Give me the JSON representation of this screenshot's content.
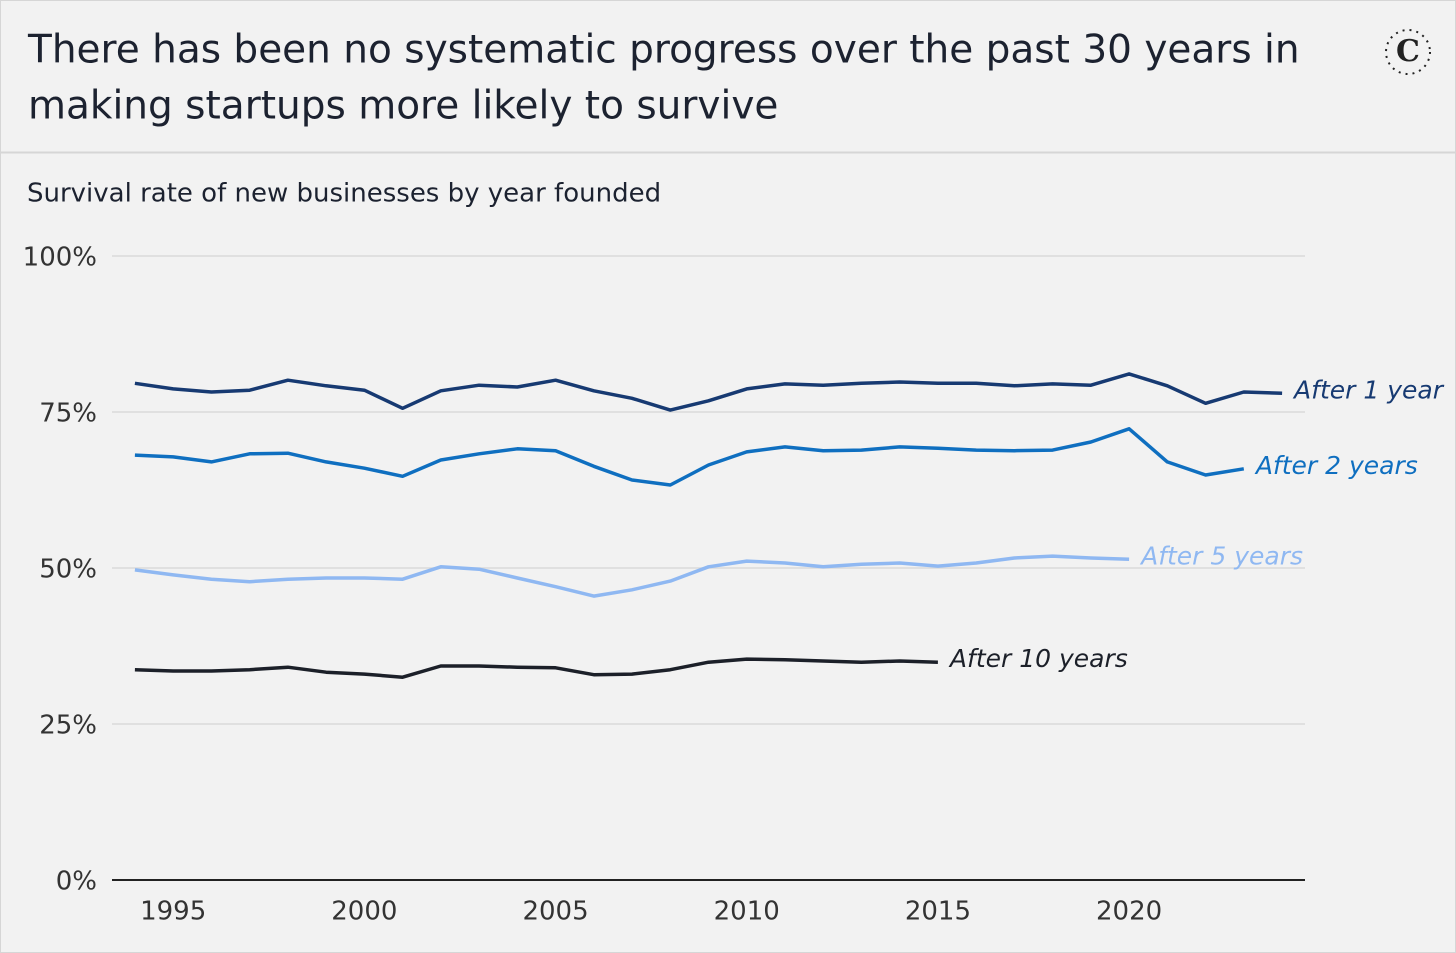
{
  "chart_data": {
    "type": "line",
    "title": "There has been no systematic progress over the past 30 years in making startups more likely to survive",
    "logo": "C",
    "subtitle": "Survival rate of new businesses by year founded",
    "x": [
      1994,
      1995,
      1996,
      1997,
      1998,
      1999,
      2000,
      2001,
      2002,
      2003,
      2004,
      2005,
      2006,
      2007,
      2008,
      2009,
      2010,
      2011,
      2012,
      2013,
      2014,
      2015,
      2016,
      2017,
      2018,
      2019,
      2020,
      2021,
      2022,
      2023,
      2024
    ],
    "xlim": [
      1993.4,
      2024.6
    ],
    "xticks": [
      1995,
      2000,
      2005,
      2010,
      2015,
      2020
    ],
    "ylim": [
      0,
      100
    ],
    "yticks": [
      {
        "value": 0,
        "label": "0%"
      },
      {
        "value": 25,
        "label": "25%"
      },
      {
        "value": 50,
        "label": "50%"
      },
      {
        "value": 75,
        "label": "75%"
      },
      {
        "value": 100,
        "label": "100%"
      }
    ],
    "grid": true,
    "series": [
      {
        "name": "After 1 year",
        "color": "#173a72",
        "values": [
          79.6,
          78.7,
          78.2,
          78.5,
          80.1,
          79.2,
          78.5,
          75.6,
          78.4,
          79.3,
          79.0,
          80.1,
          78.4,
          77.2,
          75.3,
          76.8,
          78.7,
          79.5,
          79.3,
          79.6,
          79.8,
          79.6,
          79.6,
          79.2,
          79.5,
          79.3,
          81.1,
          79.2,
          76.4,
          78.2,
          78.0
        ]
      },
      {
        "name": "After 2 years",
        "color": "#0f6fc0",
        "values": [
          68.1,
          67.8,
          67.0,
          68.3,
          68.4,
          67.0,
          66.0,
          64.7,
          67.3,
          68.3,
          69.1,
          68.8,
          66.3,
          64.1,
          63.3,
          66.5,
          68.6,
          69.4,
          68.8,
          68.9,
          69.4,
          69.2,
          68.9,
          68.8,
          68.9,
          70.2,
          72.3,
          67.0,
          64.9,
          65.9,
          null
        ]
      },
      {
        "name": "After 5 years",
        "color": "#8fb8f2",
        "values": [
          49.7,
          48.9,
          48.2,
          47.8,
          48.2,
          48.4,
          48.4,
          48.2,
          50.2,
          49.8,
          48.4,
          47.0,
          45.5,
          46.5,
          47.9,
          50.2,
          51.1,
          50.8,
          50.2,
          50.6,
          50.8,
          50.3,
          50.8,
          51.6,
          51.9,
          51.6,
          51.4,
          null,
          null,
          null,
          null
        ]
      },
      {
        "name": "After 10 years",
        "color": "#1c2029",
        "values": [
          33.7,
          33.5,
          33.5,
          33.7,
          34.1,
          33.3,
          33.0,
          32.5,
          34.3,
          34.3,
          34.1,
          34.0,
          32.9,
          33.0,
          33.7,
          34.9,
          35.4,
          35.3,
          35.1,
          34.9,
          35.1,
          34.9,
          null,
          null,
          null,
          null,
          null,
          null,
          null,
          null,
          null
        ]
      }
    ]
  }
}
